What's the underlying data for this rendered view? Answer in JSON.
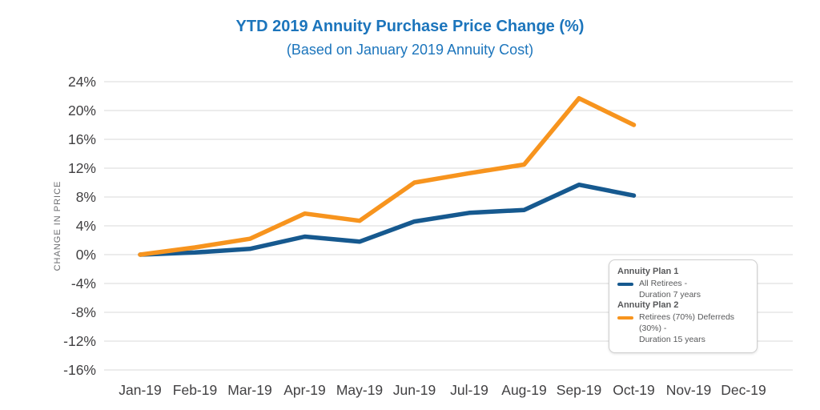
{
  "title": "YTD 2019 Annuity Purchase Price Change (%)",
  "subtitle": "(Based on January 2019 Annuity Cost)",
  "y_axis_title": "CHANGE IN PRICE",
  "colors": {
    "title_blue": "#1c75bc",
    "gridline": "#d9d9d9",
    "tick_label": "#414042",
    "legend_text": "#58595b",
    "plan1_line": "#16598f",
    "plan2_line": "#f7941e"
  },
  "chart_data": {
    "type": "line",
    "title": "YTD 2019 Annuity Purchase Price Change (%)",
    "subtitle": "(Based on January 2019 Annuity Cost)",
    "xlabel": "",
    "ylabel": "CHANGE IN PRICE",
    "categories": [
      "Jan-19",
      "Feb-19",
      "Mar-19",
      "Apr-19",
      "May-19",
      "Jun-19",
      "Jul-19",
      "Aug-19",
      "Sep-19",
      "Oct-19",
      "Nov-19",
      "Dec-19"
    ],
    "ylim": [
      -16,
      24
    ],
    "ytick_step": 4,
    "ytick_suffix": "%",
    "grid": true,
    "legend_position": "inside-right-bottom",
    "series": [
      {
        "name": "Annuity Plan 1",
        "description": "All Retirees -\nDuration 7 years",
        "color": "#16598f",
        "values": [
          0,
          0.3,
          0.8,
          2.5,
          1.8,
          4.6,
          5.8,
          6.2,
          9.7,
          8.2
        ]
      },
      {
        "name": "Annuity Plan 2",
        "description": "Retirees (70%) Deferreds (30%) -\nDuration 15 years",
        "color": "#f7941e",
        "values": [
          0,
          1.0,
          2.2,
          5.7,
          4.7,
          10.0,
          11.3,
          12.5,
          21.7,
          18.0
        ]
      }
    ]
  }
}
